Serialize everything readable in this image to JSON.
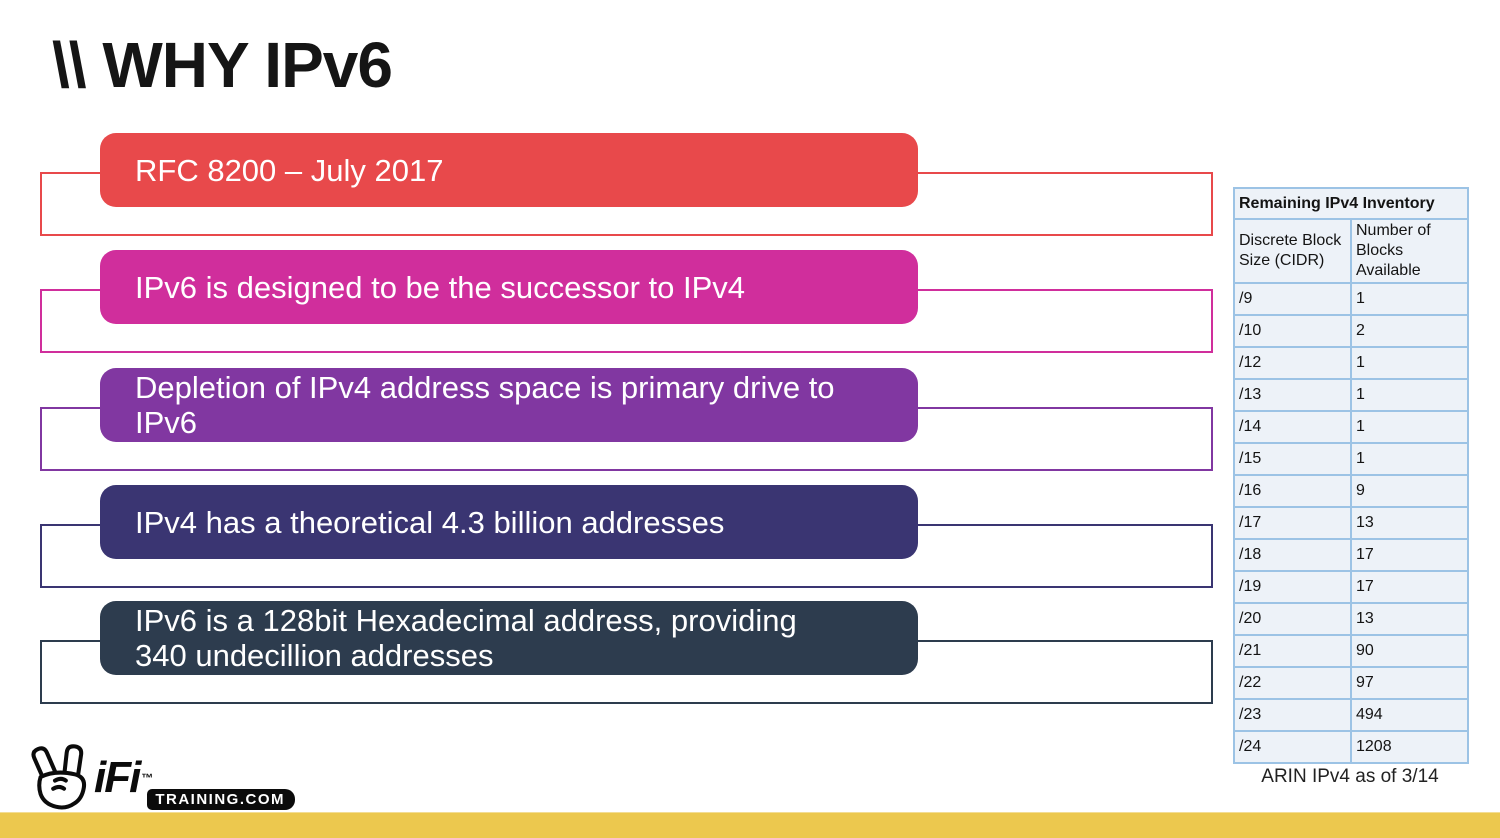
{
  "title": "\\\\ WHY IPv6",
  "banners": [
    {
      "text": "RFC 8200 – July 2017",
      "color": "#e8494b"
    },
    {
      "text": "IPv6 is designed to be the successor to IPv4",
      "color": "#d02e9c"
    },
    {
      "text": "Depletion of IPv4 address space is primary drive to\nIPv6",
      "color": "#8137a1"
    },
    {
      "text": "IPv4 has a theoretical 4.3 billion addresses",
      "color": "#3a3572"
    },
    {
      "text": "IPv6 is a 128bit Hexadecimal address, providing\n340 undecillion addresses",
      "color": "#2d3c4e"
    }
  ],
  "table": {
    "title": "Remaining IPv4 Inventory",
    "columns": [
      "Discrete Block Size (CIDR)",
      "Number of Blocks Available"
    ],
    "rows": [
      [
        "/9",
        "1"
      ],
      [
        "/10",
        "2"
      ],
      [
        "/12",
        "1"
      ],
      [
        "/13",
        "1"
      ],
      [
        "/14",
        "1"
      ],
      [
        "/15",
        "1"
      ],
      [
        "/16",
        "9"
      ],
      [
        "/17",
        "13"
      ],
      [
        "/18",
        "17"
      ],
      [
        "/19",
        "17"
      ],
      [
        "/20",
        "13"
      ],
      [
        "/21",
        "90"
      ],
      [
        "/22",
        "97"
      ],
      [
        "/23",
        "494"
      ],
      [
        "/24",
        "1208"
      ]
    ],
    "caption": "ARIN IPv4 as of 3/14",
    "border_color": "#9cc3e5",
    "cell_fill": "#edf2f8"
  },
  "logo": {
    "brand": "iFi",
    "tm": "™",
    "suffix": "TRAINING.COM",
    "icon": "horns-hand-icon"
  },
  "footer_bar_color": "#ecc84e"
}
